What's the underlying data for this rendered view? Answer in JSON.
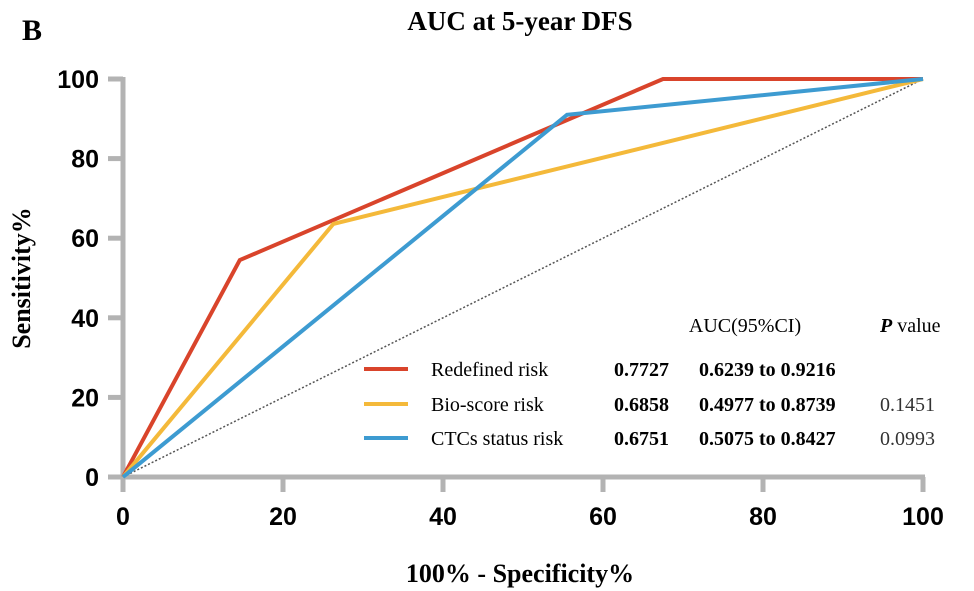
{
  "panel_label": "B",
  "chart_data": {
    "type": "line",
    "title": "AUC at 5-year DFS",
    "xlabel": "100% - Specificity%",
    "ylabel": "Sensitivity%",
    "xlim": [
      0,
      100
    ],
    "ylim": [
      0,
      100
    ],
    "xticks": [
      0,
      20,
      40,
      60,
      80,
      100
    ],
    "yticks": [
      0,
      20,
      40,
      60,
      80,
      100
    ],
    "grid": false,
    "legend_placement": "bottom-right",
    "series": [
      {
        "name": "Redefined risk",
        "color": "#d9442b",
        "x": [
          0,
          14.6,
          67.5,
          100
        ],
        "y": [
          0,
          54.5,
          100,
          100
        ],
        "auc": "0.7727",
        "ci": "0.6239 to 0.9216",
        "p": ""
      },
      {
        "name": "Bio-score risk",
        "color": "#f4b93a",
        "x": [
          0,
          26.3,
          100
        ],
        "y": [
          0,
          63.6,
          100
        ],
        "auc": "0.6858",
        "ci": "0.4977 to 0.8739",
        "p": "0.1451"
      },
      {
        "name": "CTCs status risk",
        "color": "#3d9bd1",
        "x": [
          0,
          55.5,
          100
        ],
        "y": [
          0,
          91.0,
          100
        ],
        "auc": "0.6751",
        "ci": "0.5075 to 0.8427",
        "p": "0.0993"
      }
    ],
    "reference_line": {
      "x": [
        0,
        100
      ],
      "y": [
        0,
        100
      ],
      "style": "dotted",
      "color": "#555555"
    },
    "table_headers": {
      "auc_ci": "AUC(95%CI)",
      "p_italic": "P",
      "p_rest": " value"
    }
  }
}
